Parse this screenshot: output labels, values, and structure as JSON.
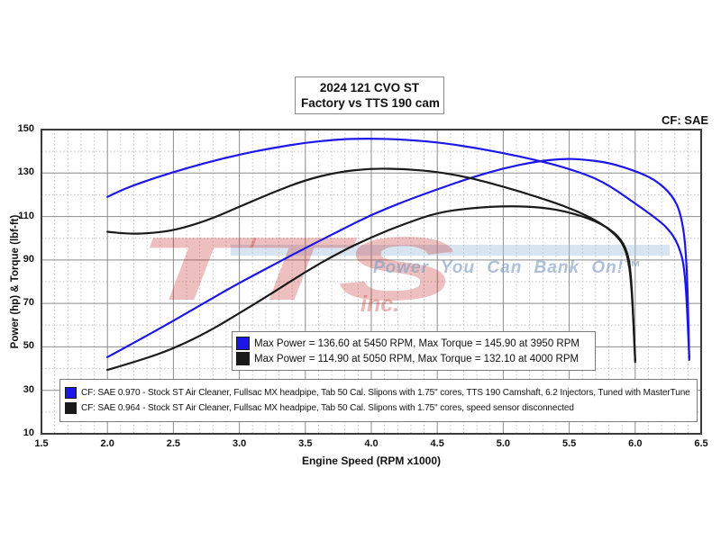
{
  "header": {
    "title_line1": "2024 121 CVO ST",
    "title_line2": "Factory vs TTS 190 cam",
    "cf_label": "CF: SAE"
  },
  "watermark": {
    "logo": "TTS",
    "logo_sub": "inc.",
    "tagline": "Power You Can Bank On!™"
  },
  "legend_summary": {
    "rows": [
      {
        "color": "#1c17e8",
        "text": "Max Power = 136.60 at 5450 RPM, Max Torque = 145.90 at 3950 RPM"
      },
      {
        "color": "#1a1a1a",
        "text": "Max Power = 114.90 at 5050 RPM, Max Torque = 132.10 at 4000 RPM"
      }
    ]
  },
  "legend_setup": {
    "rows": [
      {
        "color": "#1c17e8",
        "text": "CF: SAE 0.970 - Stock ST Air Cleaner, Fullsac MX headpipe, Tab 50 Cal. Slipons with 1.75\" cores, TTS 190 Camshaft, 6.2 Injectors, Tuned with MasterTune"
      },
      {
        "color": "#1a1a1a",
        "text": "CF: SAE 0.964 - Stock ST Air Cleaner, Fullsac MX headpipe, Tab 50 Cal. Slipons with 1.75\" cores, speed sensor disconnected"
      }
    ]
  },
  "chart_data": {
    "type": "line",
    "title": "2024 121 CVO ST",
    "subtitle": "Factory vs TTS 190 cam",
    "xlabel": "Engine Speed (RPM x1000)",
    "ylabel": "Power (hp) & Torque (lbf-ft)",
    "correction_factor": "CF: SAE",
    "xlim": [
      1.5,
      6.5
    ],
    "ylim": [
      10,
      150
    ],
    "x_ticks": [
      "1.5",
      "2.0",
      "2.5",
      "3.0",
      "3.5",
      "4.0",
      "4.5",
      "5.0",
      "5.5",
      "6.0",
      "6.5"
    ],
    "y_ticks": [
      10,
      30,
      50,
      70,
      90,
      110,
      130,
      150
    ],
    "y_minor_ticks": [
      20,
      40,
      60,
      80,
      100,
      120,
      140
    ],
    "x_minor_step": 0.1,
    "grid": true,
    "legend_position": "center-bottom",
    "annotations": {
      "tts_190_cam": {
        "max_power_hp": 136.6,
        "max_power_rpm": 5450,
        "max_torque_lbfft": 145.9,
        "max_torque_rpm": 3950
      },
      "factory": {
        "max_power_hp": 114.9,
        "max_power_rpm": 5050,
        "max_torque_lbfft": 132.1,
        "max_torque_rpm": 4000
      }
    },
    "series": [
      {
        "name": "TTS 190 cam - Torque (lbf-ft)",
        "color": "#1c17e8",
        "points": [
          [
            2.0,
            119
          ],
          [
            2.1,
            122
          ],
          [
            2.25,
            125.5
          ],
          [
            2.5,
            130.5
          ],
          [
            2.75,
            134.8
          ],
          [
            3.0,
            138.5
          ],
          [
            3.25,
            141.5
          ],
          [
            3.5,
            144
          ],
          [
            3.75,
            145.5
          ],
          [
            3.95,
            145.9
          ],
          [
            4.2,
            145.6
          ],
          [
            4.5,
            144.2
          ],
          [
            4.75,
            142
          ],
          [
            5.0,
            139.2
          ],
          [
            5.25,
            136
          ],
          [
            5.5,
            132
          ],
          [
            5.75,
            126.5
          ],
          [
            6.0,
            116
          ],
          [
            6.15,
            109.5
          ],
          [
            6.25,
            104.5
          ],
          [
            6.33,
            97
          ],
          [
            6.38,
            85
          ],
          [
            6.41,
            45
          ]
        ]
      },
      {
        "name": "TTS 190 cam - Power (hp)",
        "color": "#1c17e8",
        "points": [
          [
            2.0,
            45.3
          ],
          [
            2.25,
            53.5
          ],
          [
            2.5,
            62
          ],
          [
            2.75,
            70.8
          ],
          [
            3.0,
            79.5
          ],
          [
            3.25,
            87.5
          ],
          [
            3.5,
            95.5
          ],
          [
            3.75,
            103.2
          ],
          [
            4.0,
            110.8
          ],
          [
            4.25,
            117
          ],
          [
            4.5,
            122.5
          ],
          [
            4.75,
            127.8
          ],
          [
            5.0,
            132.2
          ],
          [
            5.25,
            135.3
          ],
          [
            5.45,
            136.6
          ],
          [
            5.6,
            136.3
          ],
          [
            5.8,
            134.8
          ],
          [
            6.0,
            131
          ],
          [
            6.15,
            127
          ],
          [
            6.28,
            120
          ],
          [
            6.35,
            111
          ],
          [
            6.39,
            92
          ],
          [
            6.41,
            44
          ]
        ]
      },
      {
        "name": "Factory - Torque (lbf-ft)",
        "color": "#1a1a1a",
        "points": [
          [
            2.0,
            103
          ],
          [
            2.15,
            102
          ],
          [
            2.3,
            102.2
          ],
          [
            2.5,
            103.5
          ],
          [
            2.75,
            108
          ],
          [
            3.0,
            114.5
          ],
          [
            3.25,
            121
          ],
          [
            3.5,
            126.8
          ],
          [
            3.75,
            130.5
          ],
          [
            4.0,
            132.1
          ],
          [
            4.25,
            131.9
          ],
          [
            4.5,
            130.6
          ],
          [
            4.75,
            127.8
          ],
          [
            5.0,
            123.8
          ],
          [
            5.25,
            119.2
          ],
          [
            5.5,
            114
          ],
          [
            5.7,
            108.5
          ],
          [
            5.85,
            102
          ],
          [
            5.93,
            95
          ],
          [
            5.97,
            82
          ],
          [
            6.0,
            44
          ]
        ]
      },
      {
        "name": "Factory - Power (hp)",
        "color": "#1a1a1a",
        "points": [
          [
            2.0,
            39.4
          ],
          [
            2.25,
            43.8
          ],
          [
            2.5,
            49.2
          ],
          [
            2.75,
            56.5
          ],
          [
            3.0,
            65.5
          ],
          [
            3.25,
            74.8
          ],
          [
            3.5,
            84.5
          ],
          [
            3.75,
            93.2
          ],
          [
            4.0,
            100.5
          ],
          [
            4.25,
            106.6
          ],
          [
            4.5,
            111.8
          ],
          [
            4.75,
            113.9
          ],
          [
            5.05,
            114.9
          ],
          [
            5.3,
            114.2
          ],
          [
            5.5,
            112
          ],
          [
            5.7,
            108
          ],
          [
            5.85,
            102.5
          ],
          [
            5.93,
            96
          ],
          [
            5.97,
            85
          ],
          [
            6.0,
            43
          ]
        ]
      }
    ]
  }
}
